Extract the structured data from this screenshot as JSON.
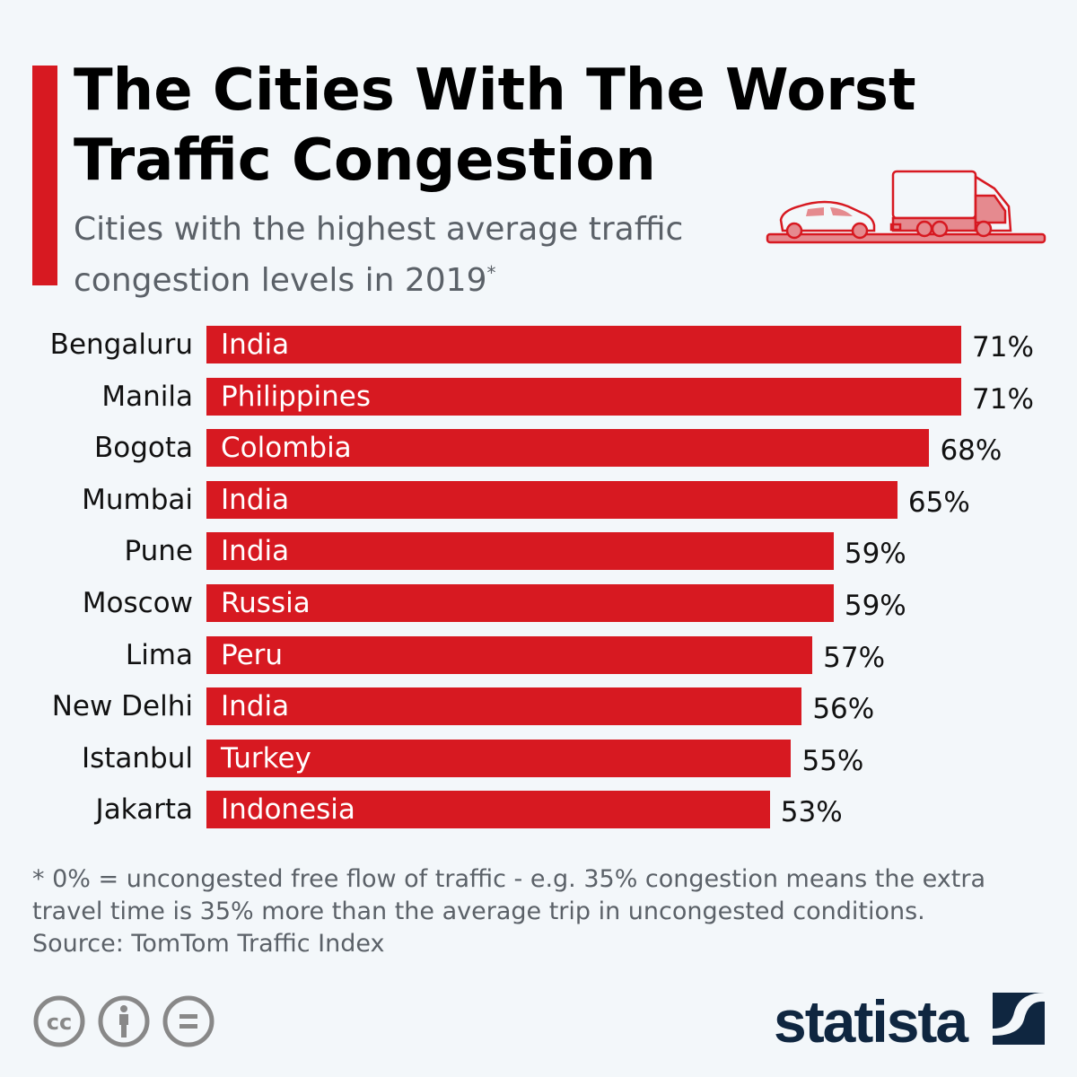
{
  "header": {
    "title": "The Cities With The Worst Traffic Congestion",
    "subtitle": "Cities with the highest average traffic congestion levels in 2019",
    "subtitle_mark": "*"
  },
  "colors": {
    "bar": "#d71921",
    "background": "#f3f7fa",
    "logo": "#0f2640"
  },
  "icons": [
    "car-icon",
    "truck-icon",
    "cc-icon",
    "attribution-icon",
    "no-derivatives-icon"
  ],
  "chart_data": {
    "type": "bar",
    "orientation": "horizontal",
    "unit": "%",
    "xlim": [
      0,
      71
    ],
    "grid": false,
    "categories": [
      "Bengaluru",
      "Manila",
      "Bogota",
      "Mumbai",
      "Pune",
      "Moscow",
      "Lima",
      "New Delhi",
      "Istanbul",
      "Jakarta"
    ],
    "countries": [
      "India",
      "Philippines",
      "Colombia",
      "India",
      "India",
      "Russia",
      "Peru",
      "India",
      "Turkey",
      "Indonesia"
    ],
    "values": [
      71,
      71,
      68,
      65,
      59,
      59,
      57,
      56,
      55,
      53
    ],
    "labels": [
      "71%",
      "71%",
      "68%",
      "65%",
      "59%",
      "59%",
      "57%",
      "56%",
      "55%",
      "53%"
    ]
  },
  "footer": {
    "note": "* 0% = uncongested free flow of traffic - e.g. 35% congestion means the extra travel time is 35% more than the average trip in uncongested conditions.",
    "source": "Source: TomTom Traffic Index"
  },
  "logo": {
    "text": "statista"
  }
}
